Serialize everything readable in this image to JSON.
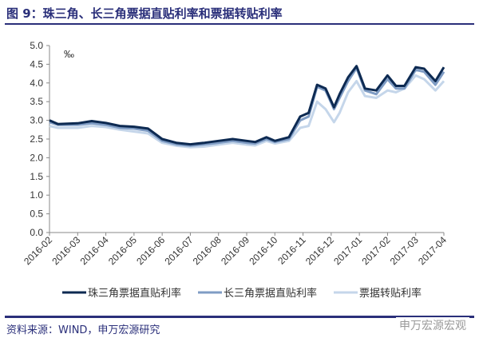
{
  "title": "图 9：珠三角、长三角票据直贴利率和票据转贴利率",
  "source": "资料来源：WIND，申万宏源研究",
  "watermark": "申万宏源宏观",
  "chart_data": {
    "type": "line",
    "unit": "‰",
    "ylim": [
      0,
      5
    ],
    "yticks": [
      "0.0",
      "0.5",
      "1.0",
      "1.5",
      "2.0",
      "2.5",
      "3.0",
      "3.5",
      "4.0",
      "4.5",
      "5.0"
    ],
    "categories": [
      "2016-02",
      "2016-03",
      "2016-04",
      "2016-05",
      "2016-06",
      "2016-07",
      "2016-08",
      "2016-09",
      "2016-10",
      "2016-11",
      "2016-12",
      "2017-01",
      "2017-02",
      "2017-03",
      "2017-04"
    ],
    "x": [
      0,
      0.3,
      1,
      1.5,
      2,
      2.5,
      3,
      3.5,
      4,
      4.5,
      5,
      5.5,
      6,
      6.5,
      7,
      7.3,
      7.7,
      8,
      8.5,
      8.9,
      9.2,
      9.5,
      9.8,
      10.1,
      10.3,
      10.6,
      10.9,
      11.2,
      11.6,
      12.0,
      12.3,
      12.6,
      13.0,
      13.3,
      13.7,
      14.0
    ],
    "series": [
      {
        "name": "珠三角票据直贴利率",
        "color": "#0d2a52",
        "values": [
          3.0,
          2.9,
          2.92,
          2.98,
          2.93,
          2.85,
          2.83,
          2.78,
          2.5,
          2.4,
          2.36,
          2.4,
          2.45,
          2.5,
          2.45,
          2.42,
          2.55,
          2.45,
          2.55,
          3.1,
          3.2,
          3.95,
          3.85,
          3.35,
          3.7,
          4.15,
          4.45,
          3.85,
          3.8,
          4.2,
          3.92,
          3.92,
          4.42,
          4.38,
          4.05,
          4.42
        ]
      },
      {
        "name": "长三角票据直贴利率",
        "color": "#7f9cc4",
        "values": [
          2.95,
          2.88,
          2.88,
          2.92,
          2.88,
          2.8,
          2.78,
          2.72,
          2.45,
          2.36,
          2.32,
          2.36,
          2.4,
          2.45,
          2.4,
          2.38,
          2.5,
          2.42,
          2.5,
          3.0,
          3.1,
          3.9,
          3.8,
          3.3,
          3.6,
          4.05,
          4.4,
          3.8,
          3.7,
          4.1,
          3.85,
          3.85,
          4.35,
          4.3,
          3.95,
          4.3
        ]
      },
      {
        "name": "票据转贴利率",
        "color": "#c5d6ea",
        "values": [
          2.85,
          2.8,
          2.8,
          2.85,
          2.82,
          2.75,
          2.7,
          2.65,
          2.4,
          2.32,
          2.28,
          2.3,
          2.35,
          2.4,
          2.35,
          2.33,
          2.45,
          2.38,
          2.45,
          2.8,
          2.85,
          3.5,
          3.3,
          2.95,
          3.2,
          3.75,
          4.05,
          3.65,
          3.6,
          3.8,
          3.75,
          3.85,
          4.2,
          4.1,
          3.8,
          4.05
        ]
      }
    ]
  }
}
